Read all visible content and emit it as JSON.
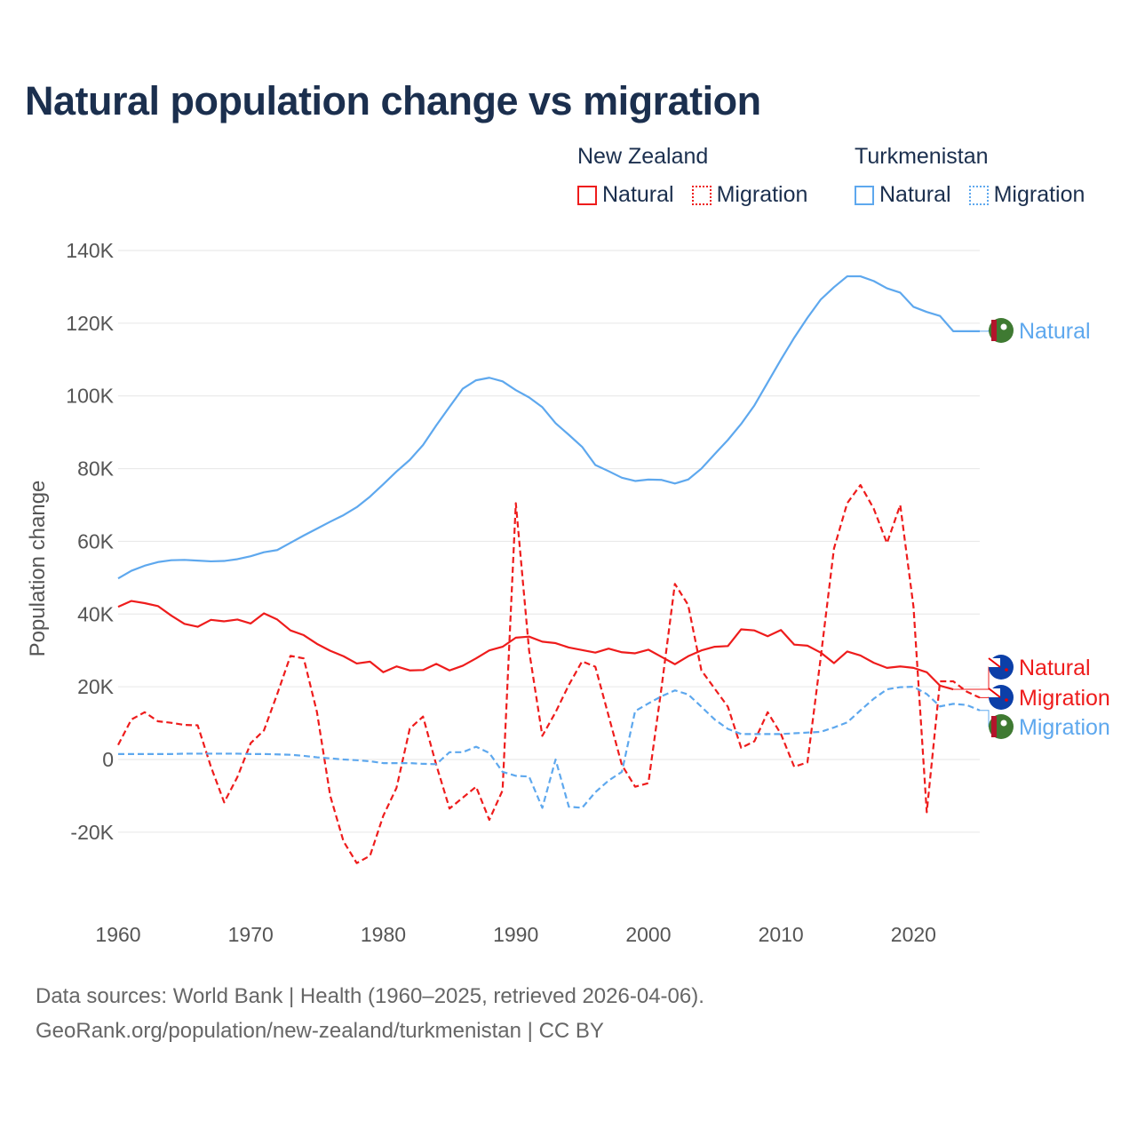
{
  "title": "Natural population change vs migration",
  "legend": {
    "groups": [
      {
        "name": "New Zealand",
        "items": [
          {
            "label": "Natural",
            "style": "solid"
          },
          {
            "label": "Migration",
            "style": "dotted"
          }
        ],
        "color": "#ee1c1c"
      },
      {
        "name": "Turkmenistan",
        "items": [
          {
            "label": "Natural",
            "style": "solid"
          },
          {
            "label": "Migration",
            "style": "dotted"
          }
        ],
        "color": "#5ea8ee"
      }
    ]
  },
  "footer": {
    "line1": "Data sources: World Bank | Health (1960–2025, retrieved 2026-04-06).",
    "line2": "GeoRank.org/population/new-zealand/turkmenistan | CC BY"
  },
  "chart_data": {
    "type": "line",
    "title": "Natural population change vs migration",
    "xlabel": "",
    "ylabel": "Population change",
    "xlim": [
      1960,
      2025
    ],
    "ylim": [
      -30000,
      140000
    ],
    "x_ticks": [
      1960,
      1970,
      1980,
      1990,
      2000,
      2010,
      2020
    ],
    "x_tick_labels": [
      "1960",
      "1970",
      "1980",
      "1990",
      "2000",
      "2010",
      "2020"
    ],
    "y_ticks": [
      -20000,
      0,
      20000,
      40000,
      60000,
      80000,
      100000,
      120000,
      140000
    ],
    "y_tick_labels": [
      "-20K",
      "0",
      "20K",
      "40K",
      "60K",
      "80K",
      "100K",
      "120K",
      "140K"
    ],
    "grid": true,
    "legend_position": "top-right",
    "start_year": 1960,
    "series": [
      {
        "name": "Turkmenistan Natural",
        "end_label": "Natural",
        "flag": "turkmenistan",
        "color": "#5ea8ee",
        "dash": false,
        "values": [
          49.8,
          51.9,
          53.3,
          54.3,
          54.8,
          54.9,
          54.7,
          54.5,
          54.6,
          55.1,
          55.9,
          57,
          57.6,
          59.6,
          61.6,
          63.5,
          65.4,
          67.2,
          69.4,
          72.3,
          75.7,
          79.2,
          82.4,
          86.5,
          91.9,
          97,
          102,
          104.3,
          105,
          104,
          101.6,
          99.6,
          96.9,
          92.5,
          89.3,
          86,
          81,
          79.3,
          77.5,
          76.6,
          77,
          76.9,
          75.9,
          77,
          80,
          84,
          87.9,
          92.3,
          97.4,
          103.7,
          110,
          116,
          121.5,
          126.5,
          129.9,
          132.9,
          132.9,
          131.6,
          129.6,
          128.4,
          124.5,
          123.1,
          122,
          117.8,
          117.8,
          117.8
        ]
      },
      {
        "name": "New Zealand Natural",
        "end_label": "Natural",
        "flag": "new-zealand",
        "color": "#ee1c1c",
        "dash": false,
        "values": [
          42,
          43.6,
          43,
          42.2,
          39.6,
          37.3,
          36.5,
          38.4,
          38,
          38.5,
          37.4,
          40.2,
          38.5,
          35.5,
          34.2,
          31.8,
          29.9,
          28.4,
          26.4,
          26.9,
          24,
          25.6,
          24.5,
          24.6,
          26.3,
          24.5,
          25.8,
          27.8,
          30,
          31,
          33.5,
          33.8,
          32.4,
          32,
          30.8,
          30.1,
          29.4,
          30.5,
          29.5,
          29.2,
          30.2,
          28.2,
          26.2,
          28.4,
          30,
          31,
          31.2,
          35.8,
          35.5,
          33.9,
          35.6,
          31.6,
          31.3,
          29.4,
          26.5,
          29.7,
          28.6,
          26.6,
          25.2,
          25.6,
          25.2,
          24,
          20.3,
          19.3
        ]
      },
      {
        "name": "New Zealand Migration",
        "end_label": "Migration",
        "flag": "new-zealand",
        "color": "#ee1c1c",
        "dash": true,
        "values": [
          4,
          11,
          13,
          10.5,
          10.1,
          9.5,
          9.4,
          -2,
          -11.8,
          -4.8,
          4.5,
          8,
          18,
          28.5,
          27.8,
          13,
          -10,
          -22.5,
          -28.5,
          -26.5,
          -15.5,
          -7.8,
          8.5,
          11.8,
          -1.5,
          -13.5,
          -10.5,
          -7.5,
          -16.6,
          -8.5,
          70.5,
          30,
          6.5,
          13,
          20.5,
          27,
          25.5,
          12,
          -1.5,
          -7.5,
          -6.5,
          20,
          48.3,
          42.5,
          24.5,
          19.5,
          14.5,
          3.2,
          5,
          13,
          7,
          -2,
          -0.8,
          28,
          58,
          70.5,
          75.5,
          69,
          59.5,
          70,
          42,
          -14.5,
          21.5,
          21.5,
          18.7,
          17
        ]
      },
      {
        "name": "Turkmenistan Migration",
        "end_label": "Migration",
        "flag": "turkmenistan",
        "color": "#5ea8ee",
        "dash": true,
        "values": [
          1.5,
          1.5,
          1.5,
          1.5,
          1.5,
          1.6,
          1.6,
          1.6,
          1.6,
          1.6,
          1.5,
          1.5,
          1.4,
          1.3,
          1,
          0.6,
          0.3,
          0,
          -0.2,
          -0.5,
          -1,
          -1,
          -1,
          -1.2,
          -1.3,
          2,
          2,
          3.5,
          1.8,
          -3.4,
          -4.5,
          -4.7,
          -13.3,
          0,
          -13,
          -13.3,
          -9,
          -5.8,
          -3.4,
          13.3,
          15.4,
          17.4,
          19,
          17.9,
          14.5,
          11,
          8.4,
          7,
          7,
          7,
          7,
          7.2,
          7.4,
          7.6,
          8.8,
          10.2,
          13.5,
          16.7,
          19.3,
          19.9,
          20,
          18,
          14.6,
          15.3,
          15,
          13.5
        ]
      }
    ],
    "value_unit": "thousands"
  }
}
